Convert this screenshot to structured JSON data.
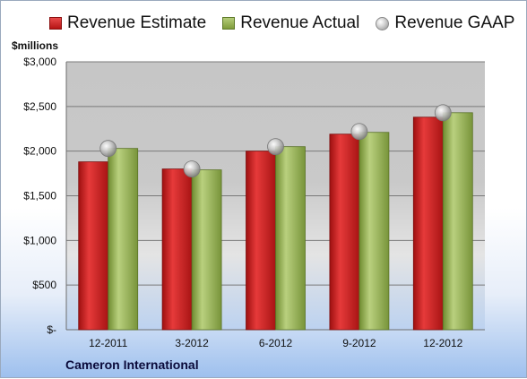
{
  "chart_data": {
    "type": "bar",
    "categories": [
      "12-2011",
      "3-2012",
      "6-2012",
      "9-2012",
      "12-2012"
    ],
    "series": [
      {
        "name": "Revenue Estimate",
        "values": [
          1880,
          1800,
          2000,
          2190,
          2380
        ],
        "color": "#c8201f"
      },
      {
        "name": "Revenue Actual",
        "values": [
          2030,
          1790,
          2050,
          2210,
          2430
        ],
        "color": "#9bb55a"
      }
    ],
    "gaap": {
      "name": "Revenue GAAP",
      "values": [
        2030,
        1800,
        2050,
        2220,
        2430
      ],
      "color": "#b0b0b0"
    },
    "ylim": [
      0,
      3000
    ],
    "yticks": [
      0,
      500,
      1000,
      1500,
      2000,
      2500,
      3000
    ],
    "ytick_labels": [
      "$-",
      "$500",
      "$1,000",
      "$1,500",
      "$2,000",
      "$2,500",
      "$3,000"
    ],
    "ylabel": "$millions",
    "grid": true,
    "legend_position": "top"
  },
  "footer": {
    "company": "Cameron International"
  }
}
